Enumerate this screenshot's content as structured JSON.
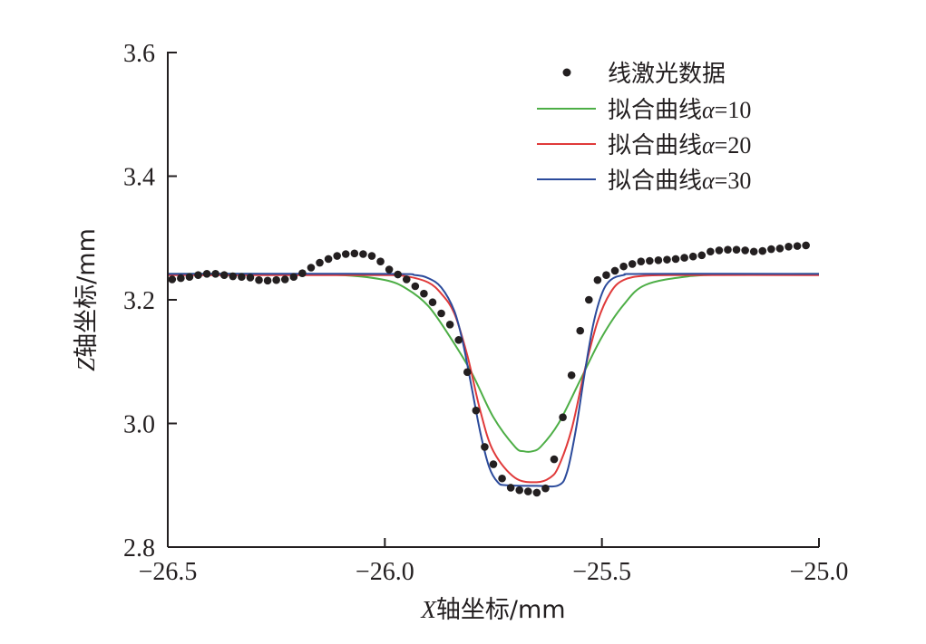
{
  "chart_data": {
    "type": "line",
    "xlabel_var": "X",
    "xlabel_rest": "轴坐标/mm",
    "ylabel_var": "Z",
    "ylabel_rest": "轴坐标/mm",
    "xlim": [
      -26.5,
      -25.0
    ],
    "ylim": [
      2.8,
      3.6
    ],
    "xticks": [
      -26.5,
      -26.0,
      -25.5,
      -25.0
    ],
    "xtick_labels": [
      "−26.5",
      "−26.0",
      "−25.5",
      "−25.0"
    ],
    "yticks": [
      2.8,
      3.0,
      3.2,
      3.4,
      3.6
    ],
    "ytick_labels": [
      "2.8",
      "3.0",
      "3.2",
      "3.4",
      "3.6"
    ],
    "grid": false,
    "legend_position": "top-right",
    "scatter": {
      "name": "线激光数据",
      "color": "#231f20",
      "x": [
        -26.49,
        -26.47,
        -26.45,
        -26.43,
        -26.41,
        -26.39,
        -26.37,
        -26.35,
        -26.33,
        -26.31,
        -26.29,
        -26.27,
        -26.25,
        -26.23,
        -26.21,
        -26.19,
        -26.17,
        -26.15,
        -26.13,
        -26.11,
        -26.09,
        -26.07,
        -26.05,
        -26.03,
        -26.01,
        -25.99,
        -25.97,
        -25.95,
        -25.93,
        -25.91,
        -25.89,
        -25.87,
        -25.85,
        -25.83,
        -25.81,
        -25.79,
        -25.77,
        -25.75,
        -25.73,
        -25.71,
        -25.69,
        -25.67,
        -25.65,
        -25.63,
        -25.61,
        -25.59,
        -25.57,
        -25.55,
        -25.53,
        -25.51,
        -25.49,
        -25.47,
        -25.45,
        -25.43,
        -25.41,
        -25.39,
        -25.37,
        -25.35,
        -25.33,
        -25.31,
        -25.29,
        -25.27,
        -25.25,
        -25.23,
        -25.21,
        -25.19,
        -25.17,
        -25.15,
        -25.13,
        -25.11,
        -25.09,
        -25.07,
        -25.05,
        -25.03
      ],
      "y": [
        3.233,
        3.235,
        3.237,
        3.24,
        3.242,
        3.242,
        3.24,
        3.238,
        3.237,
        3.236,
        3.232,
        3.231,
        3.232,
        3.233,
        3.237,
        3.243,
        3.252,
        3.26,
        3.266,
        3.271,
        3.274,
        3.275,
        3.274,
        3.271,
        3.262,
        3.249,
        3.241,
        3.233,
        3.222,
        3.21,
        3.196,
        3.178,
        3.16,
        3.135,
        3.083,
        3.021,
        2.962,
        2.934,
        2.911,
        2.896,
        2.892,
        2.89,
        2.888,
        2.895,
        2.942,
        3.01,
        3.078,
        3.15,
        3.2,
        3.232,
        3.24,
        3.247,
        3.254,
        3.258,
        3.262,
        3.263,
        3.264,
        3.265,
        3.266,
        3.268,
        3.27,
        3.272,
        3.278,
        3.28,
        3.281,
        3.281,
        3.28,
        3.278,
        3.279,
        3.282,
        3.283,
        3.286,
        3.287,
        3.288
      ]
    },
    "series": [
      {
        "name": "拟合曲线α=10",
        "prefix": "拟合曲线",
        "param": "α",
        "suffix": "=10",
        "color": "#4dae46",
        "x": [
          -26.5,
          -26.3,
          -26.1,
          -26.0,
          -25.95,
          -25.9,
          -25.85,
          -25.8,
          -25.75,
          -25.7,
          -25.68,
          -25.66,
          -25.64,
          -25.6,
          -25.55,
          -25.5,
          -25.45,
          -25.4,
          -25.3,
          -25.2,
          -25.0
        ],
        "y": [
          3.242,
          3.242,
          3.24,
          3.232,
          3.218,
          3.19,
          3.14,
          3.082,
          3.01,
          2.962,
          2.955,
          2.955,
          2.963,
          3.0,
          3.07,
          3.14,
          3.192,
          3.224,
          3.238,
          3.241,
          3.242
        ]
      },
      {
        "name": "拟合曲线α=20",
        "prefix": "拟合曲线",
        "param": "α",
        "suffix": "=20",
        "color": "#e03a3a",
        "x": [
          -26.5,
          -26.2,
          -26.0,
          -25.95,
          -25.9,
          -25.87,
          -25.84,
          -25.81,
          -25.78,
          -25.75,
          -25.7,
          -25.65,
          -25.62,
          -25.6,
          -25.57,
          -25.54,
          -25.51,
          -25.48,
          -25.45,
          -25.4,
          -25.3,
          -25.0
        ],
        "y": [
          3.24,
          3.24,
          3.24,
          3.238,
          3.228,
          3.21,
          3.178,
          3.11,
          3.02,
          2.955,
          2.912,
          2.905,
          2.912,
          2.93,
          2.99,
          3.085,
          3.165,
          3.212,
          3.232,
          3.239,
          3.24,
          3.24
        ]
      },
      {
        "name": "拟合曲线α=30",
        "prefix": "拟合曲线",
        "param": "α",
        "suffix": "=30",
        "color": "#2b4a9b",
        "x": [
          -26.5,
          -26.0,
          -25.93,
          -25.9,
          -25.87,
          -25.84,
          -25.82,
          -25.8,
          -25.78,
          -25.76,
          -25.74,
          -25.72,
          -25.65,
          -25.6,
          -25.58,
          -25.56,
          -25.54,
          -25.52,
          -25.5,
          -25.48,
          -25.45,
          -25.4,
          -25.0
        ],
        "y": [
          3.242,
          3.242,
          3.24,
          3.235,
          3.22,
          3.182,
          3.13,
          3.058,
          2.985,
          2.93,
          2.905,
          2.9,
          2.899,
          2.9,
          2.922,
          2.99,
          3.08,
          3.16,
          3.21,
          3.232,
          3.24,
          3.242,
          3.242
        ]
      }
    ]
  }
}
